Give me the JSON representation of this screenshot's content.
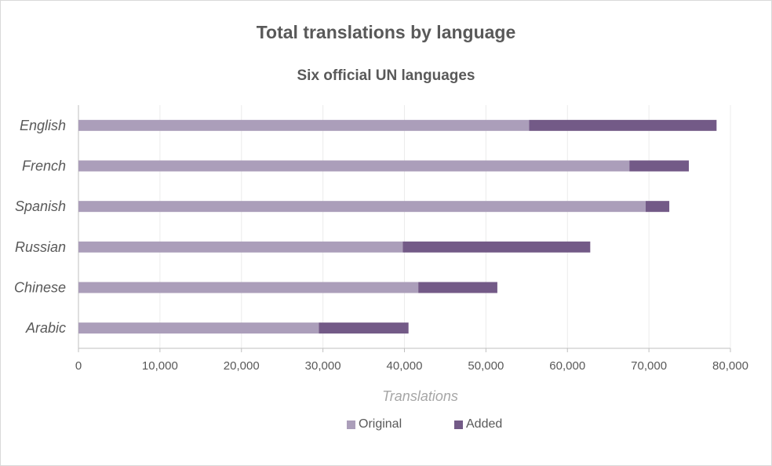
{
  "chart_data": {
    "type": "bar",
    "orientation": "horizontal",
    "stacked": true,
    "title": "Total translations by language",
    "subtitle": "Six official UN languages",
    "xlabel": "Translations",
    "ylabel": "",
    "categories": [
      "English",
      "French",
      "Spanish",
      "Russian",
      "Chinese",
      "Arabic"
    ],
    "series": [
      {
        "name": "Original",
        "color": "#ab9eba",
        "values": [
          55300,
          67600,
          69600,
          39800,
          41700,
          29500
        ]
      },
      {
        "name": "Added",
        "color": "#735a87",
        "values": [
          23000,
          7300,
          2900,
          23000,
          9700,
          11000
        ]
      }
    ],
    "xlim": [
      0,
      80000
    ],
    "xticks": [
      0,
      10000,
      20000,
      30000,
      40000,
      50000,
      60000,
      70000,
      80000
    ],
    "xtick_labels": [
      "0",
      "10,000",
      "20,000",
      "30,000",
      "40,000",
      "50,000",
      "60,000",
      "70,000",
      "80,000"
    ],
    "grid": true,
    "legend_position": "bottom"
  }
}
